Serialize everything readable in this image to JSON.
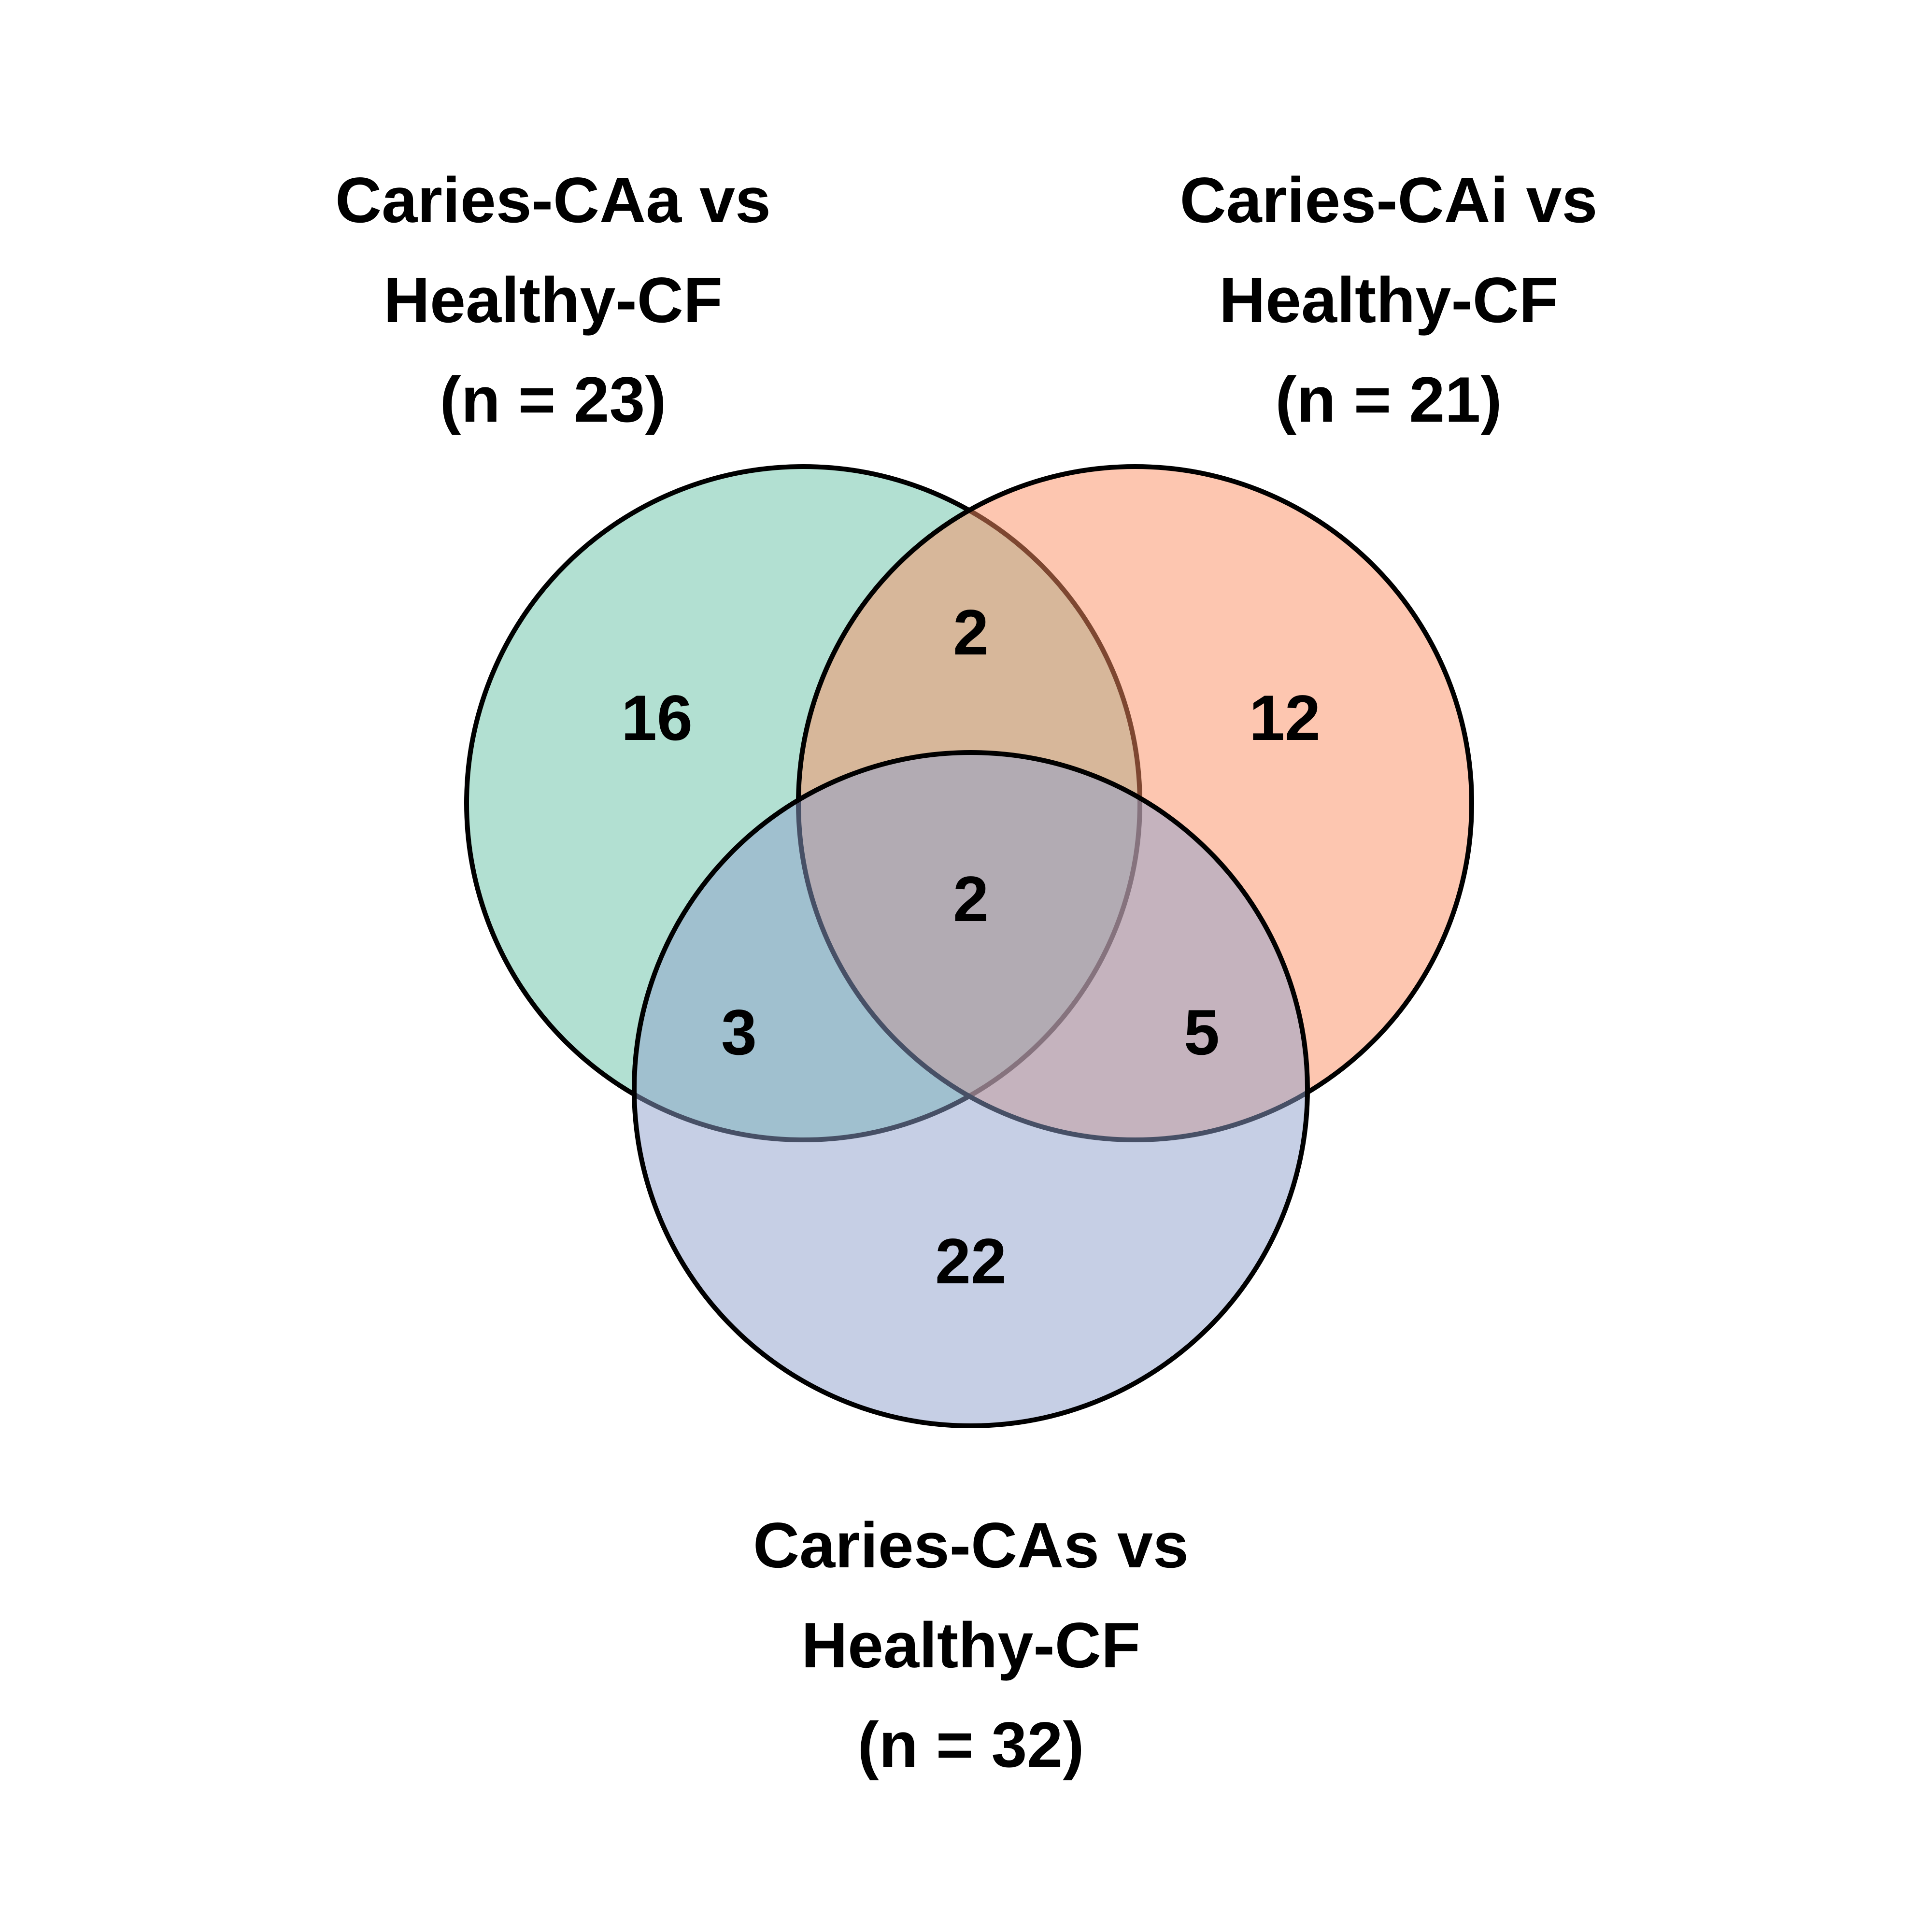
{
  "sets": [
    {
      "id": "caa",
      "label_lines": [
        "Caries-CAa vs",
        "Healthy-CF",
        "(n = 23)"
      ],
      "fill": "#66c2a5"
    },
    {
      "id": "cai",
      "label_lines": [
        "Caries-CAi vs",
        "Healthy-CF",
        "(n = 21)"
      ],
      "fill": "#fc8d62"
    },
    {
      "id": "cas",
      "label_lines": [
        "Caries-CAs vs",
        "Healthy-CF",
        "(n = 32)"
      ],
      "fill": "#8da0cb"
    }
  ],
  "regions": {
    "caa_only": "16",
    "cai_only": "12",
    "cas_only": "22",
    "caa_cai": "2",
    "caa_cas": "3",
    "cai_cas": "5",
    "all_three": "2"
  }
}
